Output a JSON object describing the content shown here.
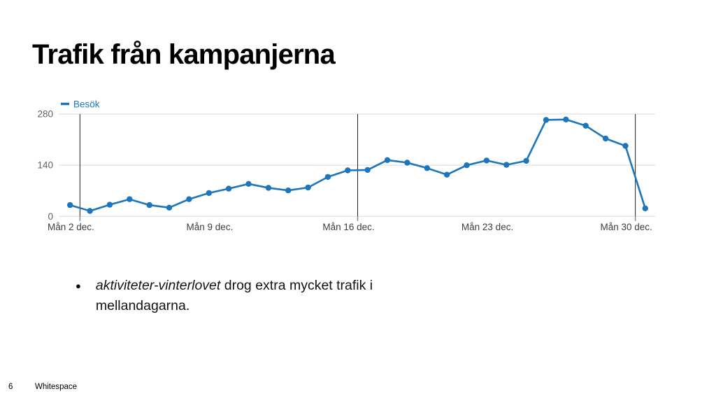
{
  "slide": {
    "title": "Trafik från kampanjerna",
    "bullet": {
      "marker": "●",
      "emphasis": "aktiviteter-vinterlovet",
      "rest": " drog extra mycket trafik i mellandagarna."
    },
    "footer": {
      "page_number": "6",
      "brand": "Whitespace"
    }
  },
  "chart_data": {
    "type": "line",
    "title": "",
    "legend": {
      "label": "Besök",
      "position": "top-left"
    },
    "categories": [
      "1 dec.",
      "2 dec.",
      "3 dec.",
      "4 dec.",
      "5 dec.",
      "6 dec.",
      "7 dec.",
      "8 dec.",
      "9 dec.",
      "10 dec.",
      "11 dec.",
      "12 dec.",
      "13 dec.",
      "14 dec.",
      "15 dec.",
      "16 dec.",
      "17 dec.",
      "18 dec.",
      "19 dec.",
      "20 dec.",
      "21 dec.",
      "22 dec.",
      "23 dec.",
      "24 dec.",
      "25 dec.",
      "26 dec.",
      "27 dec.",
      "28 dec.",
      "29 dec.",
      "30 dec."
    ],
    "series": [
      {
        "name": "Besök",
        "color": "#1d76bb",
        "values": [
          31,
          15,
          32,
          47,
          31,
          24,
          47,
          64,
          76,
          89,
          78,
          71,
          79,
          108,
          126,
          127,
          154,
          147,
          132,
          114,
          140,
          153,
          141,
          152,
          264,
          265,
          248,
          213,
          193,
          22
        ]
      }
    ],
    "y_ticks": [
      0,
      140,
      280
    ],
    "ylim": [
      0,
      280
    ],
    "x_ticks": [
      {
        "label": "Mån 2 dec.",
        "day": 2,
        "gridline": true
      },
      {
        "label": "Mån 9 dec.",
        "day": 9,
        "gridline": false
      },
      {
        "label": "Mån 16 dec.",
        "day": 16,
        "gridline": true
      },
      {
        "label": "Mån 23 dec.",
        "day": 23,
        "gridline": false
      },
      {
        "label": "Mån 30 dec.",
        "day": 30,
        "gridline": true
      }
    ],
    "grid": true,
    "colors": {
      "grid": "#d9d9d9",
      "axis_marker": "#1f1f1f",
      "axis_tick": "#80868b",
      "tick_text": "#3c4043",
      "value_text": "#5f6368"
    }
  }
}
